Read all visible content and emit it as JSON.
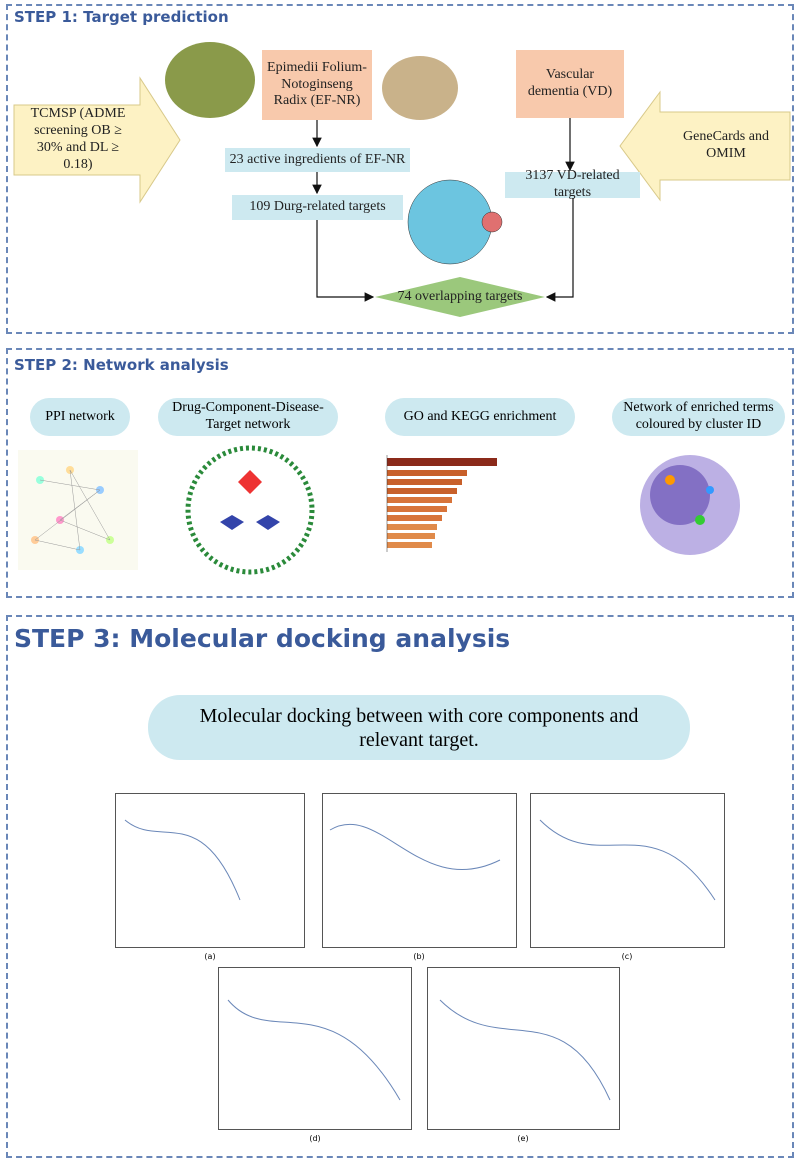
{
  "step1": {
    "title": "STEP 1: Target prediction",
    "nodes": {
      "tcmsp": "TCMSP (ADME screening OB ≥ 30% and DL ≥ 0.18)",
      "efnr": "Epimedii Folium-Notoginseng Radix (EF-NR)",
      "vd": "Vascular dementia (VD)",
      "genecards": "GeneCards and OMIM",
      "ingredients": "23  active ingredients of EF-NR",
      "drug_targets": "109 Durg-related targets",
      "vd_targets": "3137 VD-related targets",
      "overlap": "74 overlapping targets"
    }
  },
  "step2": {
    "title": "STEP 2: Network analysis",
    "panels": [
      "PPI network",
      "Drug-Component-Disease-Target network",
      "GO and KEGG enrichment",
      "Network of enriched terms coloured by cluster ID"
    ]
  },
  "step3": {
    "title": "STEP 3: Molecular docking analysis",
    "description": "Molecular docking between with core components and relevant target.",
    "panel_labels": [
      "(a)",
      "(b)",
      "(c)",
      "(d)",
      "(e)"
    ]
  }
}
